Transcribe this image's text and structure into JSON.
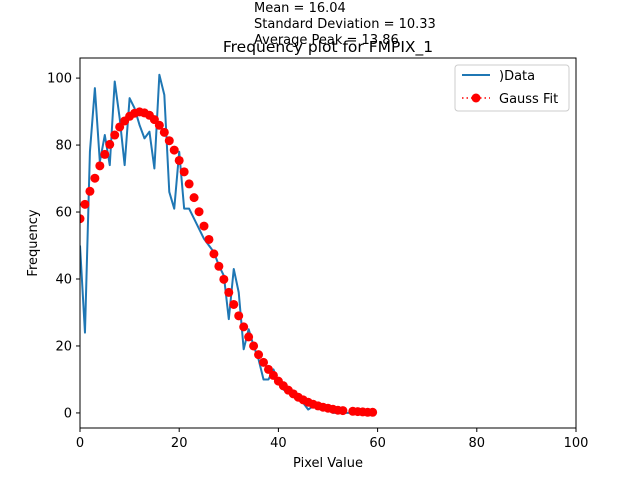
{
  "colors": {
    "data_line": "#1f77b4",
    "fit_marker": "#ff0000",
    "axes": "#000000",
    "background": "#ffffff"
  },
  "chart_data": {
    "type": "line",
    "title": "Frequency plot for FMPIX_1",
    "annotations": [
      "Mean = 16.04",
      "Standard Deviation = 10.33",
      "Average Peak = 13.86"
    ],
    "xlabel": "Pixel Value",
    "ylabel": "Frequency",
    "xlim": [
      0,
      100
    ],
    "ylim": [
      -4.5,
      106
    ],
    "xticks": [
      0,
      20,
      40,
      60,
      80,
      100
    ],
    "yticks": [
      0,
      20,
      40,
      60,
      80,
      100
    ],
    "grid": false,
    "legend": {
      "placement": "top-right",
      "entries": [
        ")Data",
        "Gauss Fit"
      ]
    },
    "series": [
      {
        "name": ")Data",
        "style": "line",
        "x": [
          0,
          1,
          2,
          3,
          4,
          5,
          6,
          7,
          8,
          9,
          10,
          11,
          12,
          13,
          14,
          15,
          16,
          17,
          18,
          19,
          20,
          21,
          22,
          23,
          24,
          25,
          26,
          27,
          28,
          29,
          30,
          31,
          32,
          33,
          34,
          35,
          36,
          37,
          38,
          39,
          40,
          41,
          42,
          43,
          44,
          45,
          46,
          47,
          48,
          49,
          50,
          51,
          52,
          53,
          54,
          55,
          56,
          57,
          58,
          59
        ],
        "y": [
          50,
          24,
          78,
          97,
          75,
          83,
          74,
          99,
          88,
          74,
          94,
          91,
          86,
          82,
          84,
          73,
          101,
          95,
          66,
          61,
          78,
          61,
          61,
          58,
          55,
          52,
          50,
          48,
          44,
          41,
          28,
          43,
          36,
          19,
          25,
          20,
          16,
          10,
          10,
          13,
          9,
          7,
          6,
          5,
          4,
          3,
          1,
          2,
          2,
          1,
          1,
          0,
          0,
          0,
          0,
          0,
          0,
          0,
          0,
          0
        ]
      },
      {
        "name": "Gauss Fit",
        "style": "markers",
        "x": [
          0,
          1,
          2,
          3,
          4,
          5,
          6,
          7,
          8,
          9,
          10,
          11,
          12,
          13,
          14,
          15,
          16,
          17,
          18,
          19,
          20,
          21,
          22,
          23,
          24,
          25,
          26,
          27,
          28,
          29,
          30,
          31,
          32,
          33,
          34,
          35,
          36,
          37,
          38,
          39,
          40,
          41,
          42,
          43,
          44,
          45,
          46,
          47,
          48,
          49,
          50,
          51,
          52,
          53,
          55,
          56,
          57,
          58,
          59
        ],
        "y": [
          58.0,
          62.3,
          66.2,
          70.1,
          73.8,
          77.2,
          80.2,
          83.0,
          85.4,
          87.2,
          88.6,
          89.5,
          89.9,
          89.6,
          88.9,
          87.6,
          85.9,
          83.8,
          81.3,
          78.5,
          75.4,
          72.0,
          68.4,
          64.3,
          60.1,
          55.8,
          51.8,
          47.5,
          43.8,
          39.9,
          36.0,
          32.4,
          29.0,
          25.7,
          22.7,
          20.0,
          17.4,
          15.1,
          13.0,
          11.2,
          9.5,
          8.1,
          6.8,
          5.7,
          4.7,
          3.9,
          3.2,
          2.6,
          2.1,
          1.7,
          1.4,
          1.1,
          0.8,
          0.7,
          0.5,
          0.4,
          0.3,
          0.2,
          0.2
        ]
      }
    ]
  }
}
